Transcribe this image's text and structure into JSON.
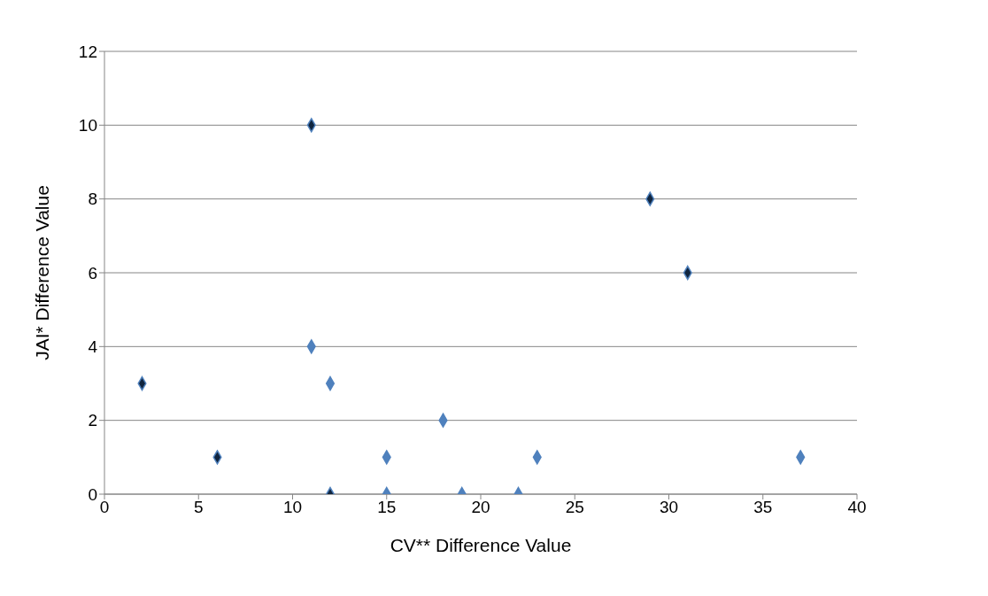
{
  "chart_data": {
    "type": "scatter",
    "xlabel": "CV** Difference Value",
    "ylabel": "JAI* Difference Value",
    "xlim": [
      0,
      40
    ],
    "ylim": [
      0,
      12
    ],
    "xticks": [
      0,
      5,
      10,
      15,
      20,
      25,
      30,
      35,
      40
    ],
    "yticks": [
      0,
      2,
      4,
      6,
      8,
      10,
      12
    ],
    "grid": "y",
    "marker": "diamond",
    "series": [
      {
        "color": "#10253f",
        "x": [
          2,
          6,
          11,
          12,
          29,
          31
        ],
        "values": [
          3,
          1,
          10,
          0,
          8,
          6
        ]
      },
      {
        "color": "#4f81bd",
        "x": [
          11,
          12,
          15,
          15,
          18,
          19,
          22,
          23,
          37
        ],
        "values": [
          4,
          3,
          1,
          0,
          2,
          0,
          0,
          1,
          1
        ]
      }
    ]
  }
}
